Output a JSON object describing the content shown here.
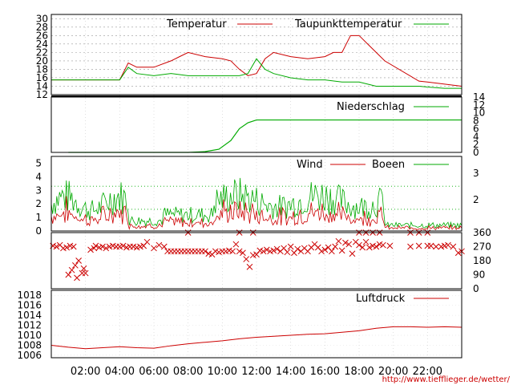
{
  "url_text": "http://www.tiefflieger.de/wetter/",
  "x_ticks": [
    "02:00",
    "04:00",
    "06:00",
    "08:00",
    "10:00",
    "12:00",
    "14:00",
    "16:00",
    "18:00",
    "20:00",
    "22:00"
  ],
  "colors": {
    "red": "#cc0000",
    "green": "#00aa00",
    "grid": "#777777",
    "wind_grid": "#00aa00"
  },
  "chart_data": [
    {
      "type": "line",
      "panel": "temperature",
      "x_range_hours": [
        0,
        24
      ],
      "ylim": [
        12,
        31
      ],
      "y_ticks": [
        "12",
        "14",
        "16",
        "18",
        "20",
        "22",
        "24",
        "26",
        "28",
        "30"
      ],
      "series": [
        {
          "name": "Temperatur",
          "color": "#cc0000",
          "x": [
            0,
            1,
            2,
            3,
            4,
            4.5,
            5,
            6,
            7,
            7.5,
            8,
            9,
            10,
            10.5,
            11,
            11.5,
            12,
            12.5,
            13,
            14,
            15,
            16,
            16.5,
            17,
            17.5,
            18,
            18.5,
            19,
            19.5,
            21.5,
            22,
            23,
            24
          ],
          "y": [
            15.5,
            15.5,
            15.5,
            15.5,
            15.5,
            19.5,
            18.5,
            18.5,
            20,
            21,
            22,
            21,
            20.5,
            20,
            18,
            16.5,
            17,
            20.5,
            22,
            21,
            20.5,
            21,
            22,
            22,
            26,
            26,
            24,
            22,
            20,
            15.2,
            15,
            14.5,
            14
          ]
        },
        {
          "name": "Taupunkttemperatur",
          "color": "#00aa00",
          "x": [
            0,
            1,
            2,
            3,
            4,
            4.5,
            5,
            6,
            7,
            8,
            9,
            10,
            11,
            11.5,
            12,
            12.5,
            13,
            14,
            15,
            16,
            17,
            18,
            18.5,
            19,
            19.5,
            21.5,
            22,
            23,
            24
          ],
          "y": [
            15.5,
            15.5,
            15.5,
            15.5,
            15.5,
            18.5,
            17,
            16.5,
            17,
            16.5,
            16.5,
            16.5,
            16.5,
            17,
            20.5,
            18,
            17,
            16,
            15.5,
            15.5,
            15,
            15,
            14.5,
            14,
            14,
            14,
            13.8,
            13.5,
            13.5
          ]
        }
      ]
    },
    {
      "type": "line",
      "panel": "precipitation",
      "ylim": [
        0,
        14
      ],
      "y_ticks": [
        "0",
        "2",
        "4",
        "6",
        "8",
        "10",
        "12",
        "14"
      ],
      "series": [
        {
          "name": "Niederschlag",
          "color": "#00aa00",
          "x": [
            1,
            8,
            9,
            9.8,
            10.5,
            11,
            11.5,
            12,
            14,
            16,
            18,
            19.5,
            21.5,
            24
          ],
          "y": [
            0,
            0,
            0.2,
            0.8,
            3,
            6,
            7.5,
            8.2,
            8.2,
            8.2,
            8.2,
            8.2,
            8.2,
            8.2
          ]
        }
      ]
    },
    {
      "type": "line",
      "panel": "wind",
      "ylim": [
        0,
        5.5
      ],
      "y_ticks_left": [
        "0",
        "1",
        "2",
        "3",
        "4",
        "5"
      ],
      "y_ticks_right": [
        "2",
        "3"
      ],
      "series": [
        {
          "name": "Wind",
          "color": "#cc0000"
        },
        {
          "name": "Boeen",
          "color": "#00aa00"
        }
      ]
    },
    {
      "type": "scatter",
      "panel": "wind_direction",
      "ylim": [
        0,
        360
      ],
      "y_ticks": [
        "0",
        "90",
        "180",
        "270",
        "360"
      ],
      "series": [
        {
          "color": "#cc0000",
          "x": [
            0.1,
            0.3,
            0.5,
            0.7,
            0.9,
            1.1,
            1.3,
            1.0,
            1.2,
            1.4,
            1.6,
            1.8,
            1.5,
            1.9,
            2.0,
            2.3,
            2.5,
            2.6,
            2.8,
            3.0,
            3.2,
            3.4,
            3.6,
            3.8,
            4.0,
            4.2,
            4.4,
            4.6,
            4.8,
            5.0,
            5.2,
            5.4,
            5.6,
            6.0,
            6.3,
            6.6,
            6.8,
            7.0,
            7.2,
            7.4,
            7.6,
            7.8,
            8.0,
            8.2,
            8.4,
            8.6,
            8.8,
            9.0,
            9.2,
            9.4,
            9.6,
            9.8,
            10.0,
            10.2,
            10.4,
            10.6,
            10.8,
            11.0,
            11.2,
            11.4,
            11.6,
            11.8,
            12.0,
            12.2,
            12.4,
            12.6,
            12.8,
            13.0,
            13.2,
            13.4,
            13.6,
            13.8,
            14.0,
            14.2,
            14.4,
            14.6,
            14.8,
            15.0,
            15.2,
            15.4,
            15.6,
            15.8,
            16.0,
            16.2,
            16.4,
            16.6,
            16.8,
            17.0,
            17.2,
            17.4,
            17.6,
            17.8,
            18.0,
            18.2,
            18.4,
            18.6,
            18.8,
            19.0,
            19.2,
            19.4,
            19.8,
            21.0,
            21.5,
            22.0,
            22.2,
            22.5,
            22.8,
            23.0,
            23.2,
            23.5,
            23.8,
            24.0,
            8.0,
            18.0,
            18.4,
            18.8,
            19.2,
            21.0,
            21.5,
            22.0,
            11.0,
            11.8
          ],
          "y": [
            275,
            270,
            280,
            260,
            265,
            275,
            270,
            90,
            120,
            150,
            180,
            100,
            70,
            130,
            100,
            250,
            260,
            275,
            265,
            270,
            260,
            270,
            275,
            270,
            270,
            275,
            265,
            270,
            270,
            265,
            270,
            275,
            300,
            260,
            280,
            270,
            240,
            240,
            240,
            240,
            240,
            240,
            240,
            240,
            240,
            240,
            240,
            240,
            225,
            220,
            240,
            235,
            240,
            240,
            245,
            240,
            285,
            240,
            230,
            190,
            140,
            215,
            220,
            245,
            240,
            250,
            240,
            245,
            255,
            240,
            260,
            235,
            270,
            230,
            255,
            240,
            260,
            240,
            265,
            285,
            265,
            240,
            250,
            265,
            240,
            270,
            305,
            245,
            295,
            285,
            225,
            300,
            280,
            265,
            300,
            265,
            275,
            270,
            285,
            280,
            275,
            270,
            275,
            275,
            275,
            270,
            270,
            275,
            280,
            270,
            230,
            240,
            360,
            360,
            360,
            360,
            360,
            360,
            360,
            360,
            360,
            360
          ]
        }
      ]
    },
    {
      "type": "line",
      "panel": "pressure",
      "ylim": [
        1005.5,
        1019
      ],
      "y_ticks": [
        "1006",
        "1008",
        "1010",
        "1012",
        "1014",
        "1016",
        "1018"
      ],
      "series": [
        {
          "name": "Luftdruck",
          "color": "#cc0000",
          "x": [
            0,
            1,
            2,
            3,
            4,
            5,
            6,
            7,
            8,
            9,
            10,
            11,
            12,
            13,
            14,
            15,
            16,
            17,
            18,
            19,
            20,
            21,
            22,
            23,
            24
          ],
          "y": [
            1008,
            1007.6,
            1007.3,
            1007.5,
            1007.7,
            1007.5,
            1007.4,
            1007.9,
            1008.3,
            1008.6,
            1008.9,
            1009.3,
            1009.6,
            1009.8,
            1010,
            1010.2,
            1010.3,
            1010.6,
            1010.9,
            1011.4,
            1011.7,
            1011.7,
            1011.6,
            1011.7,
            1011.6
          ]
        }
      ]
    }
  ]
}
